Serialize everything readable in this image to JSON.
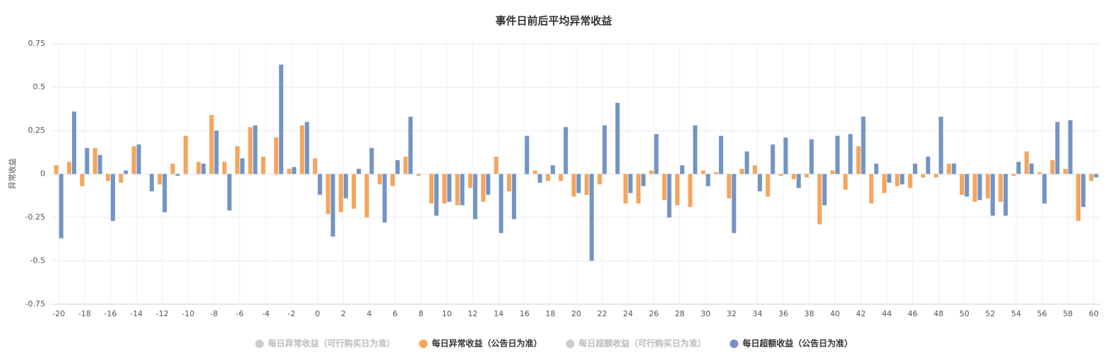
{
  "chart_data": {
    "type": "bar",
    "title": "事件日前后平均异常收益",
    "y_label": "异常收益",
    "categories": [
      -20,
      null,
      -18,
      null,
      -16,
      null,
      -14,
      null,
      -12,
      null,
      -10,
      null,
      -8,
      null,
      -6,
      null,
      -4,
      null,
      -2,
      null,
      0,
      null,
      2,
      null,
      4,
      null,
      6,
      null,
      8,
      null,
      10,
      null,
      12,
      null,
      14,
      null,
      16,
      null,
      18,
      null,
      20,
      null,
      22,
      null,
      24,
      null,
      26,
      null,
      28,
      null,
      30,
      null,
      32,
      null,
      34,
      null,
      36,
      null,
      38,
      null,
      40,
      null,
      42,
      null,
      44,
      null,
      46,
      null,
      48,
      null,
      50,
      null,
      52,
      null,
      54,
      null,
      56,
      null,
      58,
      null,
      60
    ],
    "series": [
      {
        "name": "每日异常收益（可行购买日为准）",
        "color": "#cccccc",
        "visible": false,
        "values": [
          null,
          null,
          null,
          null,
          null,
          null,
          null,
          null,
          null,
          null,
          null,
          null,
          null,
          null,
          null,
          null,
          null,
          null,
          null,
          null,
          null,
          null,
          null,
          null,
          null,
          null,
          null,
          null,
          null,
          null,
          null,
          null,
          null,
          null,
          null,
          null,
          null,
          null,
          null,
          null,
          null,
          null,
          null,
          null,
          null,
          null,
          null,
          null,
          null,
          null,
          null,
          null,
          null,
          null,
          null,
          null,
          null,
          null,
          null,
          null,
          null,
          null,
          null,
          null,
          null,
          null,
          null,
          null,
          null,
          null,
          null,
          null,
          null,
          null,
          null,
          null,
          null,
          null,
          null,
          null,
          null
        ]
      },
      {
        "name": "每日异常收益（公告日为准）",
        "color": "#f5a55c",
        "visible": true,
        "values": [
          0.05,
          0.07,
          -0.07,
          0.15,
          -0.04,
          -0.05,
          0.16,
          0.0,
          -0.06,
          0.06,
          0.22,
          0.07,
          0.34,
          0.07,
          0.16,
          0.27,
          0.1,
          0.21,
          0.03,
          0.28,
          0.09,
          -0.23,
          -0.22,
          -0.2,
          -0.25,
          -0.06,
          -0.07,
          0.1,
          -0.01,
          -0.17,
          -0.17,
          -0.18,
          -0.08,
          -0.16,
          0.1,
          -0.1,
          0.0,
          0.02,
          -0.04,
          -0.04,
          -0.13,
          -0.12,
          -0.06,
          0.0,
          -0.17,
          -0.17,
          0.02,
          -0.15,
          -0.18,
          -0.19,
          0.02,
          0.01,
          -0.14,
          0.03,
          0.05,
          -0.13,
          -0.01,
          -0.03,
          -0.02,
          -0.29,
          0.02,
          -0.09,
          0.16,
          -0.17,
          -0.11,
          -0.07,
          -0.08,
          -0.02,
          -0.02,
          0.06,
          -0.12,
          -0.16,
          -0.14,
          -0.16,
          -0.01,
          0.13,
          0.01,
          0.08,
          0.03,
          -0.27,
          -0.04
        ]
      },
      {
        "name": "每日超额收益（可行购买日为准）",
        "color": "#cccccc",
        "visible": false,
        "values": [
          null,
          null,
          null,
          null,
          null,
          null,
          null,
          null,
          null,
          null,
          null,
          null,
          null,
          null,
          null,
          null,
          null,
          null,
          null,
          null,
          null,
          null,
          null,
          null,
          null,
          null,
          null,
          null,
          null,
          null,
          null,
          null,
          null,
          null,
          null,
          null,
          null,
          null,
          null,
          null,
          null,
          null,
          null,
          null,
          null,
          null,
          null,
          null,
          null,
          null,
          null,
          null,
          null,
          null,
          null,
          null,
          null,
          null,
          null,
          null,
          null,
          null,
          null,
          null,
          null,
          null,
          null,
          null,
          null,
          null,
          null,
          null,
          null,
          null,
          null,
          null,
          null,
          null,
          null,
          null,
          null
        ]
      },
      {
        "name": "每日超额收益（公告日为准）",
        "color": "#7394c4",
        "visible": true,
        "values": [
          -0.37,
          0.36,
          0.15,
          0.11,
          -0.27,
          0.02,
          0.17,
          -0.1,
          -0.22,
          -0.01,
          0.0,
          0.06,
          0.25,
          -0.21,
          0.09,
          0.28,
          0.0,
          0.63,
          0.04,
          0.3,
          -0.12,
          -0.36,
          -0.14,
          0.03,
          0.15,
          -0.28,
          0.08,
          0.33,
          0.0,
          -0.24,
          -0.16,
          -0.18,
          -0.26,
          -0.12,
          -0.34,
          -0.26,
          0.22,
          -0.05,
          0.05,
          0.27,
          -0.11,
          -0.5,
          0.28,
          0.41,
          -0.11,
          -0.07,
          0.23,
          -0.25,
          0.05,
          0.28,
          -0.07,
          0.22,
          -0.34,
          0.13,
          -0.1,
          0.17,
          0.21,
          -0.08,
          0.2,
          -0.18,
          0.22,
          0.23,
          0.33,
          0.06,
          -0.05,
          -0.06,
          0.06,
          0.1,
          0.33,
          0.06,
          -0.13,
          -0.15,
          -0.24,
          -0.24,
          0.07,
          0.06,
          -0.17,
          0.3,
          0.31,
          -0.19,
          -0.02
        ]
      }
    ],
    "ylim": [
      -0.75,
      0.75
    ],
    "yticks": [
      -0.75,
      -0.5,
      -0.25,
      0,
      0.25,
      0.5,
      0.75
    ],
    "grid": true,
    "legend": "bottom"
  }
}
